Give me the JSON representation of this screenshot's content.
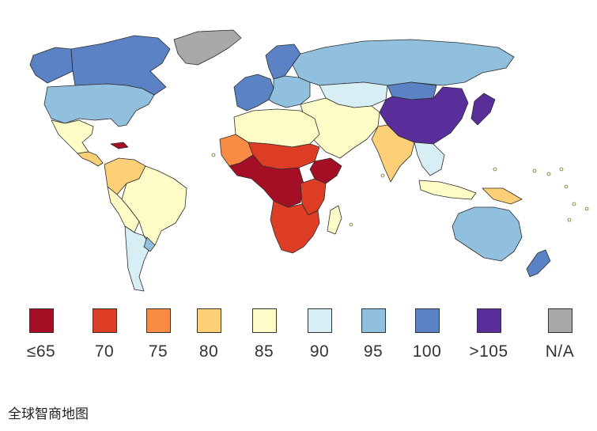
{
  "legend": {
    "items": [
      {
        "label": "≤65",
        "color": "#a50f26"
      },
      {
        "label": "70",
        "color": "#de3d25"
      },
      {
        "label": "75",
        "color": "#f98b44"
      },
      {
        "label": "80",
        "color": "#fdcf77"
      },
      {
        "label": "85",
        "color": "#fdfcc6"
      },
      {
        "label": "90",
        "color": "#d7eff4"
      },
      {
        "label": "95",
        "color": "#91c0de"
      },
      {
        "label": "100",
        "color": "#5b82c5"
      },
      {
        "label": ">105",
        "color": "#5a2e9a"
      },
      {
        "label": "N/A",
        "color": "#a8a8a8"
      }
    ]
  },
  "regions": [
    {
      "name": "greenland",
      "tier": "N/A"
    },
    {
      "name": "canada",
      "tier": "100"
    },
    {
      "name": "alaska",
      "tier": "100"
    },
    {
      "name": "usa",
      "tier": "95"
    },
    {
      "name": "mexico",
      "tier": "85"
    },
    {
      "name": "central-america",
      "tier": "80"
    },
    {
      "name": "caribbean",
      "tier": "≤65"
    },
    {
      "name": "colombia-venezuela",
      "tier": "80"
    },
    {
      "name": "brazil",
      "tier": "85"
    },
    {
      "name": "peru-bolivia",
      "tier": "85"
    },
    {
      "name": "argentina-chile",
      "tier": "90"
    },
    {
      "name": "uruguay",
      "tier": "95"
    },
    {
      "name": "europe-west",
      "tier": "100"
    },
    {
      "name": "europe-east",
      "tier": "95"
    },
    {
      "name": "scandinavia",
      "tier": "100"
    },
    {
      "name": "russia",
      "tier": "95"
    },
    {
      "name": "central-asia",
      "tier": "90"
    },
    {
      "name": "mongolia",
      "tier": "100"
    },
    {
      "name": "china",
      "tier": ">105"
    },
    {
      "name": "japan-korea",
      "tier": ">105"
    },
    {
      "name": "middle-east",
      "tier": "85"
    },
    {
      "name": "india",
      "tier": "80"
    },
    {
      "name": "southeast-asia",
      "tier": "90"
    },
    {
      "name": "indonesia",
      "tier": "85"
    },
    {
      "name": "png",
      "tier": "80"
    },
    {
      "name": "north-africa",
      "tier": "85"
    },
    {
      "name": "west-africa-coast",
      "tier": "75"
    },
    {
      "name": "sahel",
      "tier": "70"
    },
    {
      "name": "central-africa",
      "tier": "≤65"
    },
    {
      "name": "east-africa",
      "tier": "70"
    },
    {
      "name": "horn-africa",
      "tier": "≤65"
    },
    {
      "name": "southern-africa",
      "tier": "70"
    },
    {
      "name": "madagascar",
      "tier": "85"
    },
    {
      "name": "australia",
      "tier": "95"
    },
    {
      "name": "new-zealand",
      "tier": "100"
    }
  ],
  "caption": "全球智商地图"
}
